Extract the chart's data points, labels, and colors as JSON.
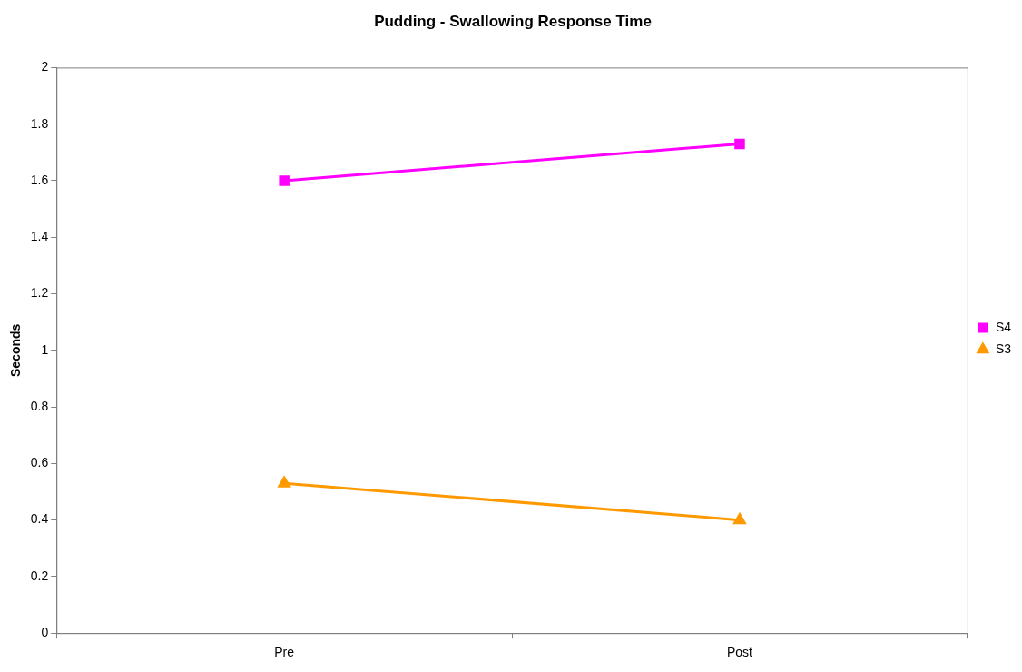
{
  "chart_data": {
    "type": "line",
    "title": "Pudding - Swallowing Response Time",
    "ylabel": "Seconds",
    "categories": [
      "Pre",
      "Post"
    ],
    "series": [
      {
        "name": "S4",
        "color": "#ff00ff",
        "marker": "square",
        "values": [
          1.6,
          1.73
        ]
      },
      {
        "name": "S3",
        "color": "#ff9900",
        "marker": "triangle",
        "values": [
          0.53,
          0.4
        ]
      }
    ],
    "ylim": [
      0,
      2
    ],
    "yticks": [
      0,
      0.2,
      0.4,
      0.6,
      0.8,
      1,
      1.2,
      1.4,
      1.6,
      1.8,
      2
    ],
    "grid": false,
    "legend": "right",
    "line_style": "solid"
  }
}
